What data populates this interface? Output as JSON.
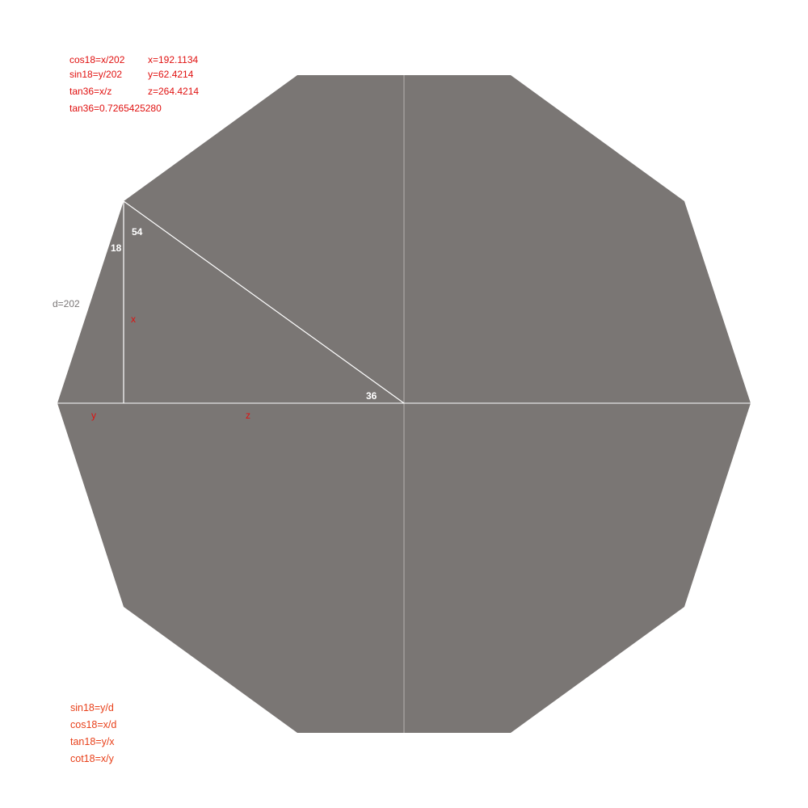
{
  "colors": {
    "polygon_fill": "#7a7674",
    "background": "#ffffff",
    "line_white": "#ffffff",
    "line_light": "#b5b2b0",
    "annotation_red": "#e0100f",
    "formula_orange": "#e8401a",
    "label_gray": "#7a7676"
  },
  "top_formulas": {
    "left": [
      "cos18=x/202",
      "sin18=y/202",
      "tan36=x/z",
      "tan36=0.7265425280"
    ],
    "right": [
      "x=192.1134",
      "y=62.4214",
      "z=264.4214"
    ]
  },
  "angle_labels": {
    "a54": "54",
    "a18": "18",
    "a36": "36"
  },
  "side_labels": {
    "d": "d=202",
    "x": "x",
    "y": "y",
    "z": "z"
  },
  "bottom_formulas": [
    "sin18=y/d",
    "cos18=x/d",
    "tan18=y/x",
    "cot18=x/y"
  ]
}
